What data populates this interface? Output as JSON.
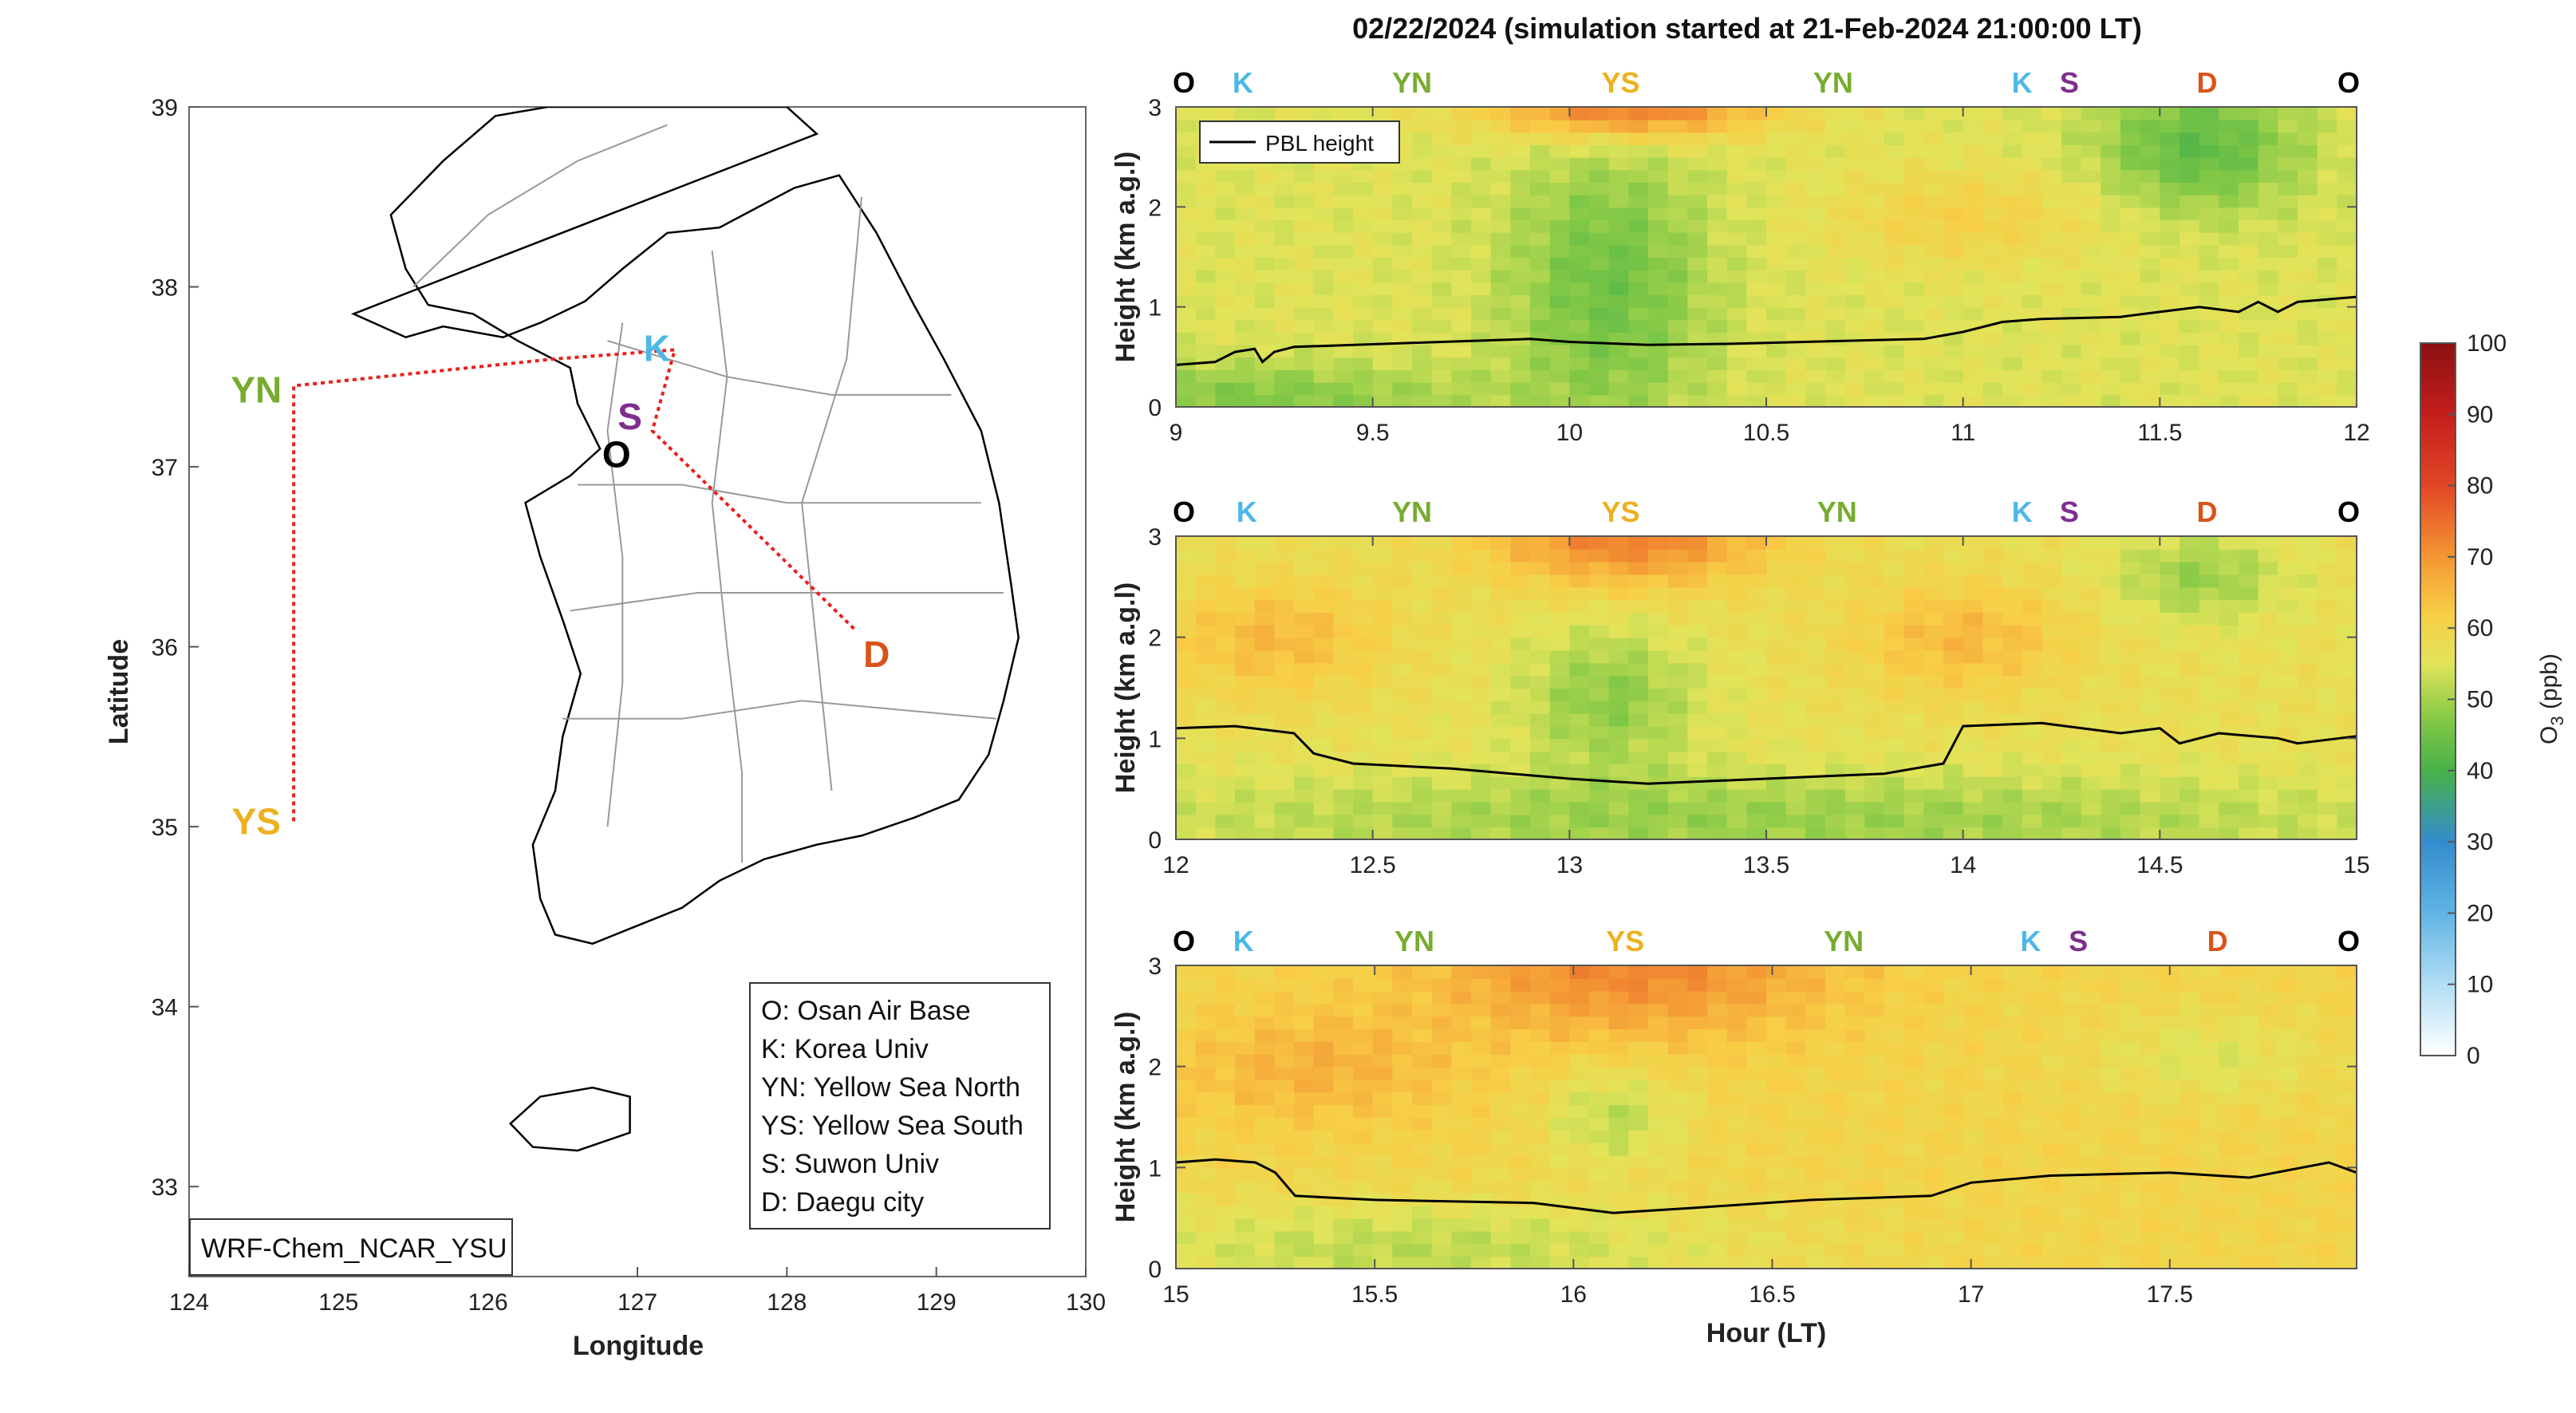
{
  "figure": {
    "title": "02/22/2024 (simulation started at 21-Feb-2024 21:00:00 LT)"
  },
  "map": {
    "xlabel": "Longitude",
    "ylabel": "Latitude",
    "xlim": [
      124,
      130
    ],
    "ylim": [
      32.5,
      39
    ],
    "xticks": [
      "124",
      "125",
      "126",
      "127",
      "128",
      "129",
      "130"
    ],
    "yticks": [
      "33",
      "34",
      "35",
      "36",
      "37",
      "38",
      "39"
    ],
    "model_label": "WRF-Chem_NCAR_YSU",
    "legend": [
      "O: Osan Air Base",
      "K: Korea Univ",
      "YN: Yellow Sea North",
      "YS: Yellow Sea South",
      "S: Suwon Univ",
      "D: Daegu city"
    ],
    "flight_track": [
      {
        "lon": 124.7,
        "lat": 35.03
      },
      {
        "lon": 124.7,
        "lat": 37.45
      },
      {
        "lon": 126.45,
        "lat": 37.6
      },
      {
        "lon": 127.25,
        "lat": 37.65
      },
      {
        "lon": 127.1,
        "lat": 37.2
      },
      {
        "lon": 128.45,
        "lat": 36.1
      }
    ],
    "stations": [
      {
        "key": "O",
        "label": "O",
        "lon": 126.86,
        "lat": 37.06,
        "color": "#000000"
      },
      {
        "key": "K",
        "label": "K",
        "lon": 127.13,
        "lat": 37.65,
        "color": "#4db8e8"
      },
      {
        "key": "S",
        "label": "S",
        "lon": 126.95,
        "lat": 37.27,
        "color": "#7e2f8e"
      },
      {
        "key": "YN",
        "label": "YN",
        "lon": 124.45,
        "lat": 37.42,
        "color": "#77ac30"
      },
      {
        "key": "YS",
        "label": "YS",
        "lon": 124.45,
        "lat": 35.02,
        "color": "#edb120"
      },
      {
        "key": "D",
        "label": "D",
        "lon": 128.6,
        "lat": 35.95,
        "color": "#d95319"
      }
    ]
  },
  "chart_data": [
    {
      "type": "heatmap",
      "xlabel": "",
      "ylabel": "Height (km a.g.l)",
      "xlim": [
        9,
        12
      ],
      "ylim": [
        0,
        3
      ],
      "xticks": [
        "9",
        "9.5",
        "10",
        "10.5",
        "11",
        "11.5",
        "12"
      ],
      "yticks": [
        "0",
        "1",
        "2",
        "3"
      ],
      "stations_top": [
        {
          "label": "O",
          "x": 9.0
        },
        {
          "label": "K",
          "x": 9.17
        },
        {
          "label": "YN",
          "x": 9.6
        },
        {
          "label": "YS",
          "x": 10.13
        },
        {
          "label": "YN",
          "x": 10.67
        },
        {
          "label": "K",
          "x": 11.15
        },
        {
          "label": "S",
          "x": 11.27
        },
        {
          "label": "D",
          "x": 11.62
        },
        {
          "label": "O",
          "x": 12.0
        }
      ],
      "legend": "PBL height",
      "pbl_height": [
        [
          9.0,
          0.42
        ],
        [
          9.1,
          0.45
        ],
        [
          9.15,
          0.55
        ],
        [
          9.2,
          0.58
        ],
        [
          9.22,
          0.45
        ],
        [
          9.25,
          0.55
        ],
        [
          9.3,
          0.6
        ],
        [
          9.6,
          0.64
        ],
        [
          9.9,
          0.68
        ],
        [
          10.0,
          0.65
        ],
        [
          10.2,
          0.62
        ],
        [
          10.4,
          0.63
        ],
        [
          10.6,
          0.65
        ],
        [
          10.9,
          0.68
        ],
        [
          11.0,
          0.75
        ],
        [
          11.1,
          0.85
        ],
        [
          11.2,
          0.88
        ],
        [
          11.4,
          0.9
        ],
        [
          11.5,
          0.95
        ],
        [
          11.6,
          1.0
        ],
        [
          11.7,
          0.95
        ],
        [
          11.75,
          1.05
        ],
        [
          11.8,
          0.95
        ],
        [
          11.85,
          1.05
        ],
        [
          12.0,
          1.1
        ]
      ],
      "o3_field": {
        "base": 55,
        "features": [
          {
            "x": 10.15,
            "z": 3.0,
            "sx": 0.25,
            "sz": 0.22,
            "amp": 20
          },
          {
            "x": 10.1,
            "z": 1.2,
            "sx": 0.18,
            "sz": 1.0,
            "amp": -10
          },
          {
            "x": 11.6,
            "z": 2.6,
            "sx": 0.18,
            "sz": 0.45,
            "amp": -12
          },
          {
            "x": 9.2,
            "z": 0.1,
            "sx": 0.4,
            "sz": 0.25,
            "amp": -8
          },
          {
            "x": 11.0,
            "z": 1.9,
            "sx": 0.25,
            "sz": 0.35,
            "amp": 6
          }
        ]
      }
    },
    {
      "type": "heatmap",
      "xlabel": "",
      "ylabel": "Height (km a.g.l)",
      "xlim": [
        12,
        15
      ],
      "ylim": [
        0,
        3
      ],
      "xticks": [
        "12",
        "12.5",
        "13",
        "13.5",
        "14",
        "14.5",
        "15"
      ],
      "yticks": [
        "0",
        "1",
        "2",
        "3"
      ],
      "stations_top": [
        {
          "label": "O",
          "x": 12.0
        },
        {
          "label": "K",
          "x": 12.18
        },
        {
          "label": "YN",
          "x": 12.6
        },
        {
          "label": "YS",
          "x": 13.13
        },
        {
          "label": "YN",
          "x": 13.68
        },
        {
          "label": "K",
          "x": 14.15
        },
        {
          "label": "S",
          "x": 14.27
        },
        {
          "label": "D",
          "x": 14.62
        },
        {
          "label": "O",
          "x": 15.0
        }
      ],
      "pbl_height": [
        [
          12.0,
          1.1
        ],
        [
          12.15,
          1.12
        ],
        [
          12.3,
          1.05
        ],
        [
          12.35,
          0.85
        ],
        [
          12.45,
          0.75
        ],
        [
          12.7,
          0.7
        ],
        [
          13.0,
          0.6
        ],
        [
          13.2,
          0.55
        ],
        [
          13.5,
          0.6
        ],
        [
          13.8,
          0.65
        ],
        [
          13.95,
          0.75
        ],
        [
          14.0,
          1.12
        ],
        [
          14.2,
          1.15
        ],
        [
          14.4,
          1.05
        ],
        [
          14.5,
          1.1
        ],
        [
          14.55,
          0.95
        ],
        [
          14.65,
          1.05
        ],
        [
          14.8,
          1.0
        ],
        [
          14.85,
          0.95
        ],
        [
          15.0,
          1.02
        ]
      ],
      "o3_field": {
        "base": 57,
        "features": [
          {
            "x": 13.15,
            "z": 3.0,
            "sx": 0.25,
            "sz": 0.35,
            "amp": 16
          },
          {
            "x": 13.1,
            "z": 1.4,
            "sx": 0.16,
            "sz": 0.5,
            "amp": -9
          },
          {
            "x": 14.6,
            "z": 2.6,
            "sx": 0.15,
            "sz": 0.3,
            "amp": -8
          },
          {
            "x": 12.25,
            "z": 2.0,
            "sx": 0.2,
            "sz": 0.4,
            "amp": 8
          },
          {
            "x": 14.0,
            "z": 2.0,
            "sx": 0.2,
            "sz": 0.4,
            "amp": 8
          },
          {
            "x": 13.5,
            "z": 0.2,
            "sx": 1.2,
            "sz": 0.35,
            "amp": -8
          }
        ]
      }
    },
    {
      "type": "heatmap",
      "xlabel": "Hour (LT)",
      "ylabel": "Height (km a.g.l)",
      "xlim": [
        15,
        17.97
      ],
      "ylim": [
        0,
        3
      ],
      "xticks": [
        "15",
        "15.5",
        "16",
        "16.5",
        "17",
        "17.5"
      ],
      "yticks": [
        "0",
        "1",
        "2",
        "3"
      ],
      "stations_top": [
        {
          "label": "O",
          "x": 15.0
        },
        {
          "label": "K",
          "x": 15.17
        },
        {
          "label": "YN",
          "x": 15.6
        },
        {
          "label": "YS",
          "x": 16.13
        },
        {
          "label": "YN",
          "x": 16.68
        },
        {
          "label": "K",
          "x": 17.15
        },
        {
          "label": "S",
          "x": 17.27
        },
        {
          "label": "D",
          "x": 17.62
        },
        {
          "label": "O",
          "x": 17.97
        }
      ],
      "pbl_height": [
        [
          15.0,
          1.05
        ],
        [
          15.1,
          1.08
        ],
        [
          15.2,
          1.05
        ],
        [
          15.25,
          0.95
        ],
        [
          15.3,
          0.72
        ],
        [
          15.5,
          0.68
        ],
        [
          15.9,
          0.65
        ],
        [
          16.1,
          0.55
        ],
        [
          16.3,
          0.6
        ],
        [
          16.6,
          0.68
        ],
        [
          16.9,
          0.72
        ],
        [
          17.0,
          0.85
        ],
        [
          17.2,
          0.92
        ],
        [
          17.5,
          0.95
        ],
        [
          17.7,
          0.9
        ],
        [
          17.9,
          1.05
        ],
        [
          17.97,
          0.95
        ]
      ],
      "o3_field": {
        "base": 60,
        "features": [
          {
            "x": 16.15,
            "z": 3.0,
            "sx": 0.35,
            "sz": 0.5,
            "amp": 12
          },
          {
            "x": 16.1,
            "z": 1.5,
            "sx": 0.12,
            "sz": 0.35,
            "amp": -8
          },
          {
            "x": 15.6,
            "z": 0.2,
            "sx": 0.6,
            "sz": 0.35,
            "amp": -8
          },
          {
            "x": 15.35,
            "z": 2.0,
            "sx": 0.25,
            "sz": 0.4,
            "amp": 6
          },
          {
            "x": 17.6,
            "z": 2.1,
            "sx": 0.2,
            "sz": 0.3,
            "amp": -5
          }
        ]
      }
    }
  ],
  "colorbar": {
    "label": "O3 (ppb)",
    "label_main": "O",
    "label_sub": "3",
    "label_unit": " (ppb)",
    "min": 0,
    "max": 100,
    "ticks": [
      "0",
      "10",
      "20",
      "30",
      "40",
      "50",
      "60",
      "70",
      "80",
      "90",
      "100"
    ]
  }
}
